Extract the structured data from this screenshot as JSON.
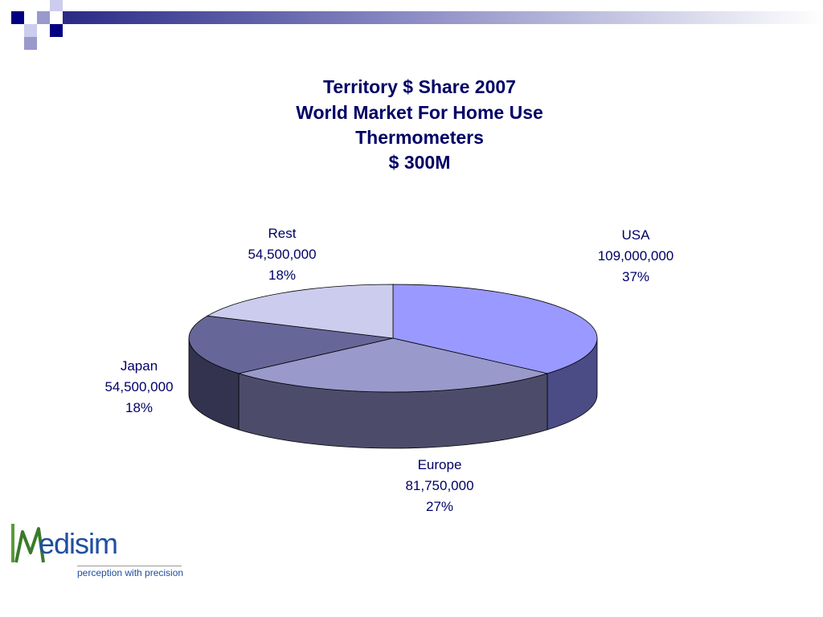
{
  "title_lines": [
    "Territory $ Share 2007",
    "World Market For Home Use",
    "Thermometers",
    "$ 300M"
  ],
  "chart_data": {
    "type": "pie",
    "title": "Territory $ Share 2007 World Market For Home Use Thermometers $ 300M",
    "slices": [
      {
        "name": "USA",
        "value": 109000000,
        "value_label": "109,000,000",
        "percent_label": "37%",
        "color": "#9999ff",
        "side_color": "#4b4b86"
      },
      {
        "name": "Europe",
        "value": 81750000,
        "value_label": "81,750,000",
        "percent_label": "27%",
        "color": "#9999cc",
        "side_color": "#4c4c6a"
      },
      {
        "name": "Japan",
        "value": 54500000,
        "value_label": "54,500,000",
        "percent_label": "18%",
        "color": "#666699",
        "side_color": "#333350"
      },
      {
        "name": "Rest",
        "value": 54500000,
        "value_label": "54,500,000",
        "percent_label": "18%",
        "color": "#ccccee",
        "side_color": "#6a6a88"
      }
    ]
  },
  "logo": {
    "brand_mark": "M",
    "brand_rest": "edisim",
    "tagline": "perception with precision"
  },
  "colors": {
    "title": "#000066",
    "decoration_dark": "#000080",
    "decoration_light": "#9999cc"
  }
}
